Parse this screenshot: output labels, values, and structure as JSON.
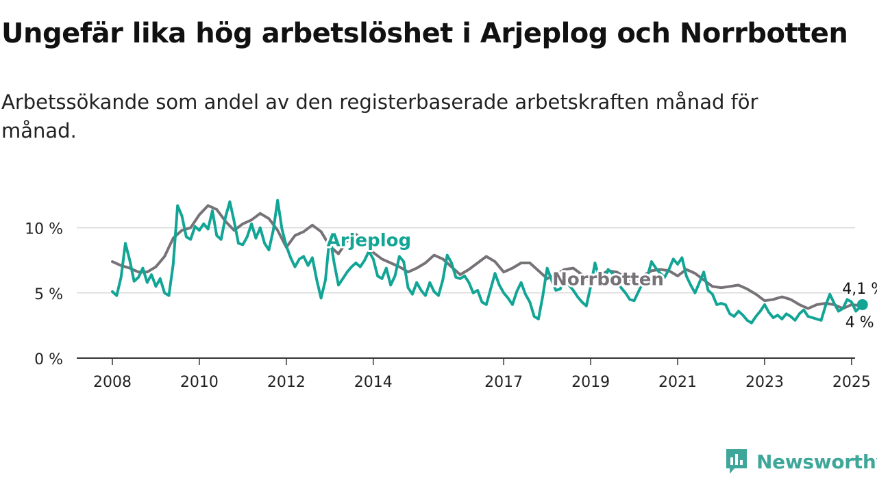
{
  "title": "Ungefär lika hög arbetslöshet i Arjeplog och Norrbotten",
  "subtitle": "Arbetssökande som andel av den registerbaserade arbetskraften månad för månad.",
  "brand": {
    "name": "Newsworthy",
    "icon": "newsworthy-logo-icon"
  },
  "colors": {
    "arjeplog": "#12a596",
    "norrbotten": "#767277",
    "grid": "#d9d9d9",
    "axis": "#333333"
  },
  "chart_data": {
    "type": "line",
    "xlim": [
      2008,
      2025.9
    ],
    "ylim": [
      0,
      12.5
    ],
    "x_ticks": [
      2008,
      2010,
      2012,
      2014,
      2017,
      2019,
      2021,
      2023,
      2025
    ],
    "y_ticks": [
      {
        "value": 0,
        "label": "0 %"
      },
      {
        "value": 5,
        "label": "5 %"
      },
      {
        "value": 10,
        "label": "10 %"
      }
    ],
    "grid": true,
    "series": [
      {
        "name": "Norrbotten",
        "color": "#767277",
        "end_label": "4 %",
        "points": [
          [
            2008.0,
            7.4
          ],
          [
            2008.2,
            7.1
          ],
          [
            2008.4,
            6.9
          ],
          [
            2008.6,
            6.6
          ],
          [
            2008.8,
            6.6
          ],
          [
            2009.0,
            7.0
          ],
          [
            2009.2,
            7.8
          ],
          [
            2009.4,
            9.2
          ],
          [
            2009.6,
            9.8
          ],
          [
            2009.8,
            10.0
          ],
          [
            2010.0,
            11.0
          ],
          [
            2010.2,
            11.7
          ],
          [
            2010.4,
            11.4
          ],
          [
            2010.6,
            10.5
          ],
          [
            2010.8,
            9.8
          ],
          [
            2011.0,
            10.3
          ],
          [
            2011.2,
            10.6
          ],
          [
            2011.4,
            11.1
          ],
          [
            2011.6,
            10.7
          ],
          [
            2011.8,
            9.8
          ],
          [
            2012.0,
            8.5
          ],
          [
            2012.2,
            9.4
          ],
          [
            2012.4,
            9.7
          ],
          [
            2012.6,
            10.2
          ],
          [
            2012.8,
            9.7
          ],
          [
            2013.0,
            8.6
          ],
          [
            2013.2,
            8.0
          ],
          [
            2013.4,
            9.0
          ],
          [
            2013.6,
            9.5
          ],
          [
            2013.8,
            8.9
          ],
          [
            2014.0,
            8.1
          ],
          [
            2014.2,
            7.6
          ],
          [
            2014.4,
            7.3
          ],
          [
            2014.6,
            7.0
          ],
          [
            2014.8,
            6.6
          ],
          [
            2015.0,
            6.9
          ],
          [
            2015.2,
            7.3
          ],
          [
            2015.4,
            7.9
          ],
          [
            2015.6,
            7.6
          ],
          [
            2015.8,
            7.0
          ],
          [
            2016.0,
            6.4
          ],
          [
            2016.2,
            6.8
          ],
          [
            2016.4,
            7.3
          ],
          [
            2016.6,
            7.8
          ],
          [
            2016.8,
            7.4
          ],
          [
            2017.0,
            6.6
          ],
          [
            2017.2,
            6.9
          ],
          [
            2017.4,
            7.3
          ],
          [
            2017.6,
            7.3
          ],
          [
            2017.8,
            6.7
          ],
          [
            2018.0,
            6.1
          ],
          [
            2018.2,
            6.4
          ],
          [
            2018.4,
            6.8
          ],
          [
            2018.6,
            6.9
          ],
          [
            2018.8,
            6.4
          ],
          [
            2019.0,
            5.9
          ],
          [
            2019.2,
            6.3
          ],
          [
            2019.4,
            6.7
          ],
          [
            2019.6,
            6.6
          ],
          [
            2019.8,
            6.2
          ],
          [
            2020.0,
            5.9
          ],
          [
            2020.2,
            6.3
          ],
          [
            2020.4,
            6.7
          ],
          [
            2020.6,
            6.8
          ],
          [
            2020.8,
            6.7
          ],
          [
            2021.0,
            6.3
          ],
          [
            2021.2,
            6.8
          ],
          [
            2021.4,
            6.5
          ],
          [
            2021.6,
            6.0
          ],
          [
            2021.8,
            5.5
          ],
          [
            2022.0,
            5.4
          ],
          [
            2022.2,
            5.5
          ],
          [
            2022.4,
            5.6
          ],
          [
            2022.6,
            5.3
          ],
          [
            2022.8,
            4.9
          ],
          [
            2023.0,
            4.4
          ],
          [
            2023.2,
            4.5
          ],
          [
            2023.4,
            4.7
          ],
          [
            2023.6,
            4.5
          ],
          [
            2023.8,
            4.1
          ],
          [
            2024.0,
            3.8
          ],
          [
            2024.2,
            4.1
          ],
          [
            2024.4,
            4.2
          ],
          [
            2024.6,
            4.1
          ],
          [
            2024.8,
            3.8
          ],
          [
            2025.0,
            4.1
          ],
          [
            2025.25,
            4.0
          ]
        ]
      },
      {
        "name": "Arjeplog",
        "color": "#12a596",
        "end_label": "4,1 %",
        "points": [
          [
            2008.0,
            5.1
          ],
          [
            2008.1,
            4.8
          ],
          [
            2008.2,
            6.2
          ],
          [
            2008.3,
            8.8
          ],
          [
            2008.4,
            7.5
          ],
          [
            2008.5,
            5.9
          ],
          [
            2008.6,
            6.2
          ],
          [
            2008.7,
            6.9
          ],
          [
            2008.8,
            5.8
          ],
          [
            2008.9,
            6.4
          ],
          [
            2009.0,
            5.5
          ],
          [
            2009.1,
            6.1
          ],
          [
            2009.2,
            5.0
          ],
          [
            2009.3,
            4.8
          ],
          [
            2009.4,
            7.2
          ],
          [
            2009.5,
            11.7
          ],
          [
            2009.6,
            10.9
          ],
          [
            2009.7,
            9.3
          ],
          [
            2009.8,
            9.1
          ],
          [
            2009.9,
            10.1
          ],
          [
            2010.0,
            9.8
          ],
          [
            2010.1,
            10.3
          ],
          [
            2010.2,
            9.9
          ],
          [
            2010.3,
            11.3
          ],
          [
            2010.4,
            9.4
          ],
          [
            2010.5,
            9.1
          ],
          [
            2010.6,
            10.8
          ],
          [
            2010.7,
            12.0
          ],
          [
            2010.8,
            10.5
          ],
          [
            2010.9,
            8.8
          ],
          [
            2011.0,
            8.7
          ],
          [
            2011.1,
            9.3
          ],
          [
            2011.2,
            10.3
          ],
          [
            2011.3,
            9.2
          ],
          [
            2011.4,
            10.0
          ],
          [
            2011.5,
            8.8
          ],
          [
            2011.6,
            8.3
          ],
          [
            2011.7,
            9.8
          ],
          [
            2011.8,
            12.1
          ],
          [
            2011.9,
            9.9
          ],
          [
            2012.0,
            8.6
          ],
          [
            2012.1,
            7.7
          ],
          [
            2012.2,
            7.0
          ],
          [
            2012.3,
            7.6
          ],
          [
            2012.4,
            7.8
          ],
          [
            2012.5,
            7.1
          ],
          [
            2012.6,
            7.7
          ],
          [
            2012.7,
            6.0
          ],
          [
            2012.8,
            4.6
          ],
          [
            2012.9,
            6.0
          ],
          [
            2013.0,
            9.4
          ],
          [
            2013.1,
            7.3
          ],
          [
            2013.2,
            5.6
          ],
          [
            2013.3,
            6.1
          ],
          [
            2013.4,
            6.6
          ],
          [
            2013.5,
            7.0
          ],
          [
            2013.6,
            7.3
          ],
          [
            2013.7,
            7.0
          ],
          [
            2013.8,
            7.5
          ],
          [
            2013.9,
            8.2
          ],
          [
            2014.0,
            7.6
          ],
          [
            2014.1,
            6.3
          ],
          [
            2014.2,
            6.1
          ],
          [
            2014.3,
            6.9
          ],
          [
            2014.4,
            5.6
          ],
          [
            2014.5,
            6.3
          ],
          [
            2014.6,
            7.8
          ],
          [
            2014.7,
            7.4
          ],
          [
            2014.8,
            5.4
          ],
          [
            2014.9,
            4.9
          ],
          [
            2015.0,
            5.8
          ],
          [
            2015.1,
            5.2
          ],
          [
            2015.2,
            4.8
          ],
          [
            2015.3,
            5.8
          ],
          [
            2015.4,
            5.1
          ],
          [
            2015.5,
            4.8
          ],
          [
            2015.6,
            6.0
          ],
          [
            2015.7,
            7.9
          ],
          [
            2015.8,
            7.3
          ],
          [
            2015.9,
            6.2
          ],
          [
            2016.0,
            6.1
          ],
          [
            2016.1,
            6.3
          ],
          [
            2016.2,
            5.8
          ],
          [
            2016.3,
            5.0
          ],
          [
            2016.4,
            5.2
          ],
          [
            2016.5,
            4.3
          ],
          [
            2016.6,
            4.1
          ],
          [
            2016.7,
            5.3
          ],
          [
            2016.8,
            6.5
          ],
          [
            2016.9,
            5.6
          ],
          [
            2017.0,
            5.0
          ],
          [
            2017.1,
            4.6
          ],
          [
            2017.2,
            4.1
          ],
          [
            2017.3,
            5.1
          ],
          [
            2017.4,
            5.8
          ],
          [
            2017.5,
            4.9
          ],
          [
            2017.6,
            4.3
          ],
          [
            2017.7,
            3.2
          ],
          [
            2017.8,
            3.0
          ],
          [
            2017.9,
            4.8
          ],
          [
            2018.0,
            6.9
          ],
          [
            2018.1,
            6.0
          ],
          [
            2018.2,
            5.2
          ],
          [
            2018.3,
            5.3
          ],
          [
            2018.4,
            6.1
          ],
          [
            2018.5,
            5.6
          ],
          [
            2018.6,
            5.2
          ],
          [
            2018.7,
            4.7
          ],
          [
            2018.8,
            4.3
          ],
          [
            2018.9,
            4.0
          ],
          [
            2019.0,
            5.5
          ],
          [
            2019.1,
            7.3
          ],
          [
            2019.2,
            6.1
          ],
          [
            2019.3,
            5.8
          ],
          [
            2019.4,
            6.8
          ],
          [
            2019.5,
            6.5
          ],
          [
            2019.6,
            6.0
          ],
          [
            2019.7,
            5.4
          ],
          [
            2019.8,
            5.0
          ],
          [
            2019.9,
            4.5
          ],
          [
            2020.0,
            4.4
          ],
          [
            2020.1,
            5.1
          ],
          [
            2020.2,
            5.8
          ],
          [
            2020.3,
            6.2
          ],
          [
            2020.4,
            7.4
          ],
          [
            2020.5,
            6.9
          ],
          [
            2020.6,
            6.5
          ],
          [
            2020.7,
            6.2
          ],
          [
            2020.8,
            6.8
          ],
          [
            2020.9,
            7.6
          ],
          [
            2021.0,
            7.2
          ],
          [
            2021.1,
            7.7
          ],
          [
            2021.2,
            6.3
          ],
          [
            2021.3,
            5.6
          ],
          [
            2021.4,
            5.0
          ],
          [
            2021.5,
            5.8
          ],
          [
            2021.6,
            6.6
          ],
          [
            2021.7,
            5.2
          ],
          [
            2021.8,
            4.9
          ],
          [
            2021.9,
            4.1
          ],
          [
            2022.0,
            4.2
          ],
          [
            2022.1,
            4.1
          ],
          [
            2022.2,
            3.4
          ],
          [
            2022.3,
            3.2
          ],
          [
            2022.4,
            3.6
          ],
          [
            2022.5,
            3.3
          ],
          [
            2022.6,
            2.9
          ],
          [
            2022.7,
            2.7
          ],
          [
            2022.8,
            3.2
          ],
          [
            2022.9,
            3.6
          ],
          [
            2023.0,
            4.1
          ],
          [
            2023.1,
            3.5
          ],
          [
            2023.2,
            3.1
          ],
          [
            2023.3,
            3.3
          ],
          [
            2023.4,
            3.0
          ],
          [
            2023.5,
            3.4
          ],
          [
            2023.6,
            3.2
          ],
          [
            2023.7,
            2.9
          ],
          [
            2023.8,
            3.4
          ],
          [
            2023.9,
            3.7
          ],
          [
            2024.0,
            3.2
          ],
          [
            2024.1,
            3.1
          ],
          [
            2024.2,
            3.0
          ],
          [
            2024.3,
            2.9
          ],
          [
            2024.4,
            4.0
          ],
          [
            2024.5,
            4.9
          ],
          [
            2024.6,
            4.2
          ],
          [
            2024.7,
            3.6
          ],
          [
            2024.8,
            3.8
          ],
          [
            2024.9,
            4.5
          ],
          [
            2025.0,
            4.3
          ],
          [
            2025.1,
            3.6
          ],
          [
            2025.25,
            4.1
          ]
        ]
      }
    ],
    "inline_labels": [
      {
        "series": "Arjeplog",
        "text": "Arjeplog",
        "x": 2013.9,
        "y": 8.6,
        "color": "#12a596"
      },
      {
        "series": "Norrbotten",
        "text": "Norrbotten",
        "x": 2019.4,
        "y": 5.6,
        "color": "#767277"
      }
    ]
  }
}
